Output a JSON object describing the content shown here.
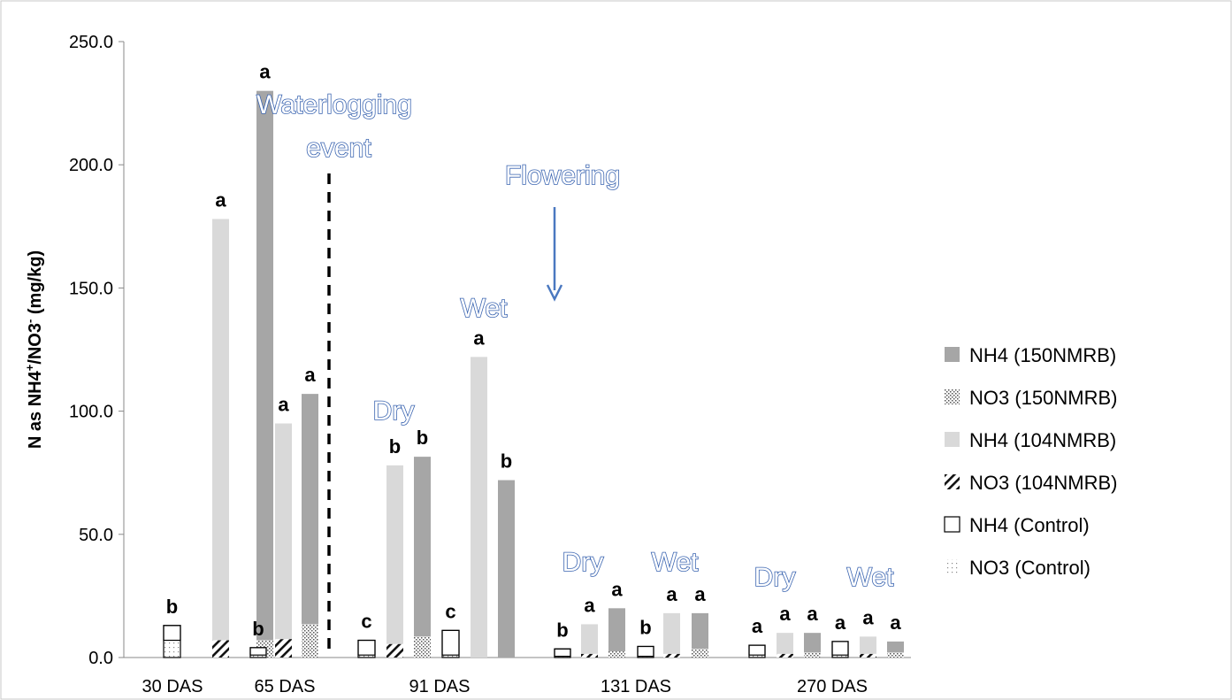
{
  "chart_data": {
    "type": "bar",
    "ylabel": "N as NH4",
    "ylabel_sup": "+",
    "ylabel_mid": "/NO3",
    "ylabel_sup2": "-",
    "ylabel_tail": " (mg/kg)",
    "ylim": [
      0,
      250
    ],
    "yticks": [
      "0.0",
      "50.0",
      "100.0",
      "150.0",
      "200.0",
      "250.0"
    ],
    "categories": [
      "30 DAS",
      "65 DAS",
      "91 DAS",
      "131 DAS",
      "270 DAS"
    ],
    "legend_position": "right",
    "legend": [
      {
        "name": "NH4 (150NMRB)",
        "style": "nh4_150"
      },
      {
        "name": "NO3 (150NMRB)",
        "style": "no3_150"
      },
      {
        "name": "NH4 (104NMRB)",
        "style": "nh4_104"
      },
      {
        "name": "NO3 (104NMRB)",
        "style": "no3_104"
      },
      {
        "name": "NH4 (Control)",
        "style": "nh4_ctrl"
      },
      {
        "name": "NO3 (Control)",
        "style": "no3_ctrl"
      }
    ],
    "colors": {
      "nh4_150": "#a6a6a6",
      "nh4_104": "#d9d9d9",
      "annotation": "#3a64b0"
    },
    "bars": [
      {
        "cat": 0,
        "treatment": "Control",
        "no3": 7,
        "nh4": 6,
        "letter": "b"
      },
      {
        "cat": 0,
        "treatment": "104NMRB",
        "no3": 7,
        "nh4": 171,
        "letter": "a"
      },
      {
        "cat": 0,
        "treatment": "150NMRB",
        "no3": 7,
        "nh4": 223,
        "letter": "a"
      },
      {
        "cat": 1,
        "treatment": "Control",
        "no3": 1,
        "nh4": 3,
        "letter": "b"
      },
      {
        "cat": 1,
        "treatment": "104NMRB",
        "no3": 7.5,
        "nh4": 87.5,
        "letter": "a"
      },
      {
        "cat": 1,
        "treatment": "150NMRB",
        "no3": 13.5,
        "nh4": 93.5,
        "letter": "a"
      },
      {
        "cat": 2,
        "treatment": "Control",
        "no3": 1,
        "nh4": 6,
        "letter": "c"
      },
      {
        "cat": 2,
        "treatment": "104NMRB",
        "no3": 5.5,
        "nh4": 72.5,
        "letter": "b"
      },
      {
        "cat": 2,
        "treatment": "150NMRB",
        "no3": 8.5,
        "nh4": 73,
        "letter": "b"
      },
      {
        "cat": 2,
        "treatment": "Control",
        "no3": 1,
        "nh4": 10,
        "letter": "c"
      },
      {
        "cat": 2,
        "treatment": "104NMRB",
        "no3": 0,
        "nh4": 122,
        "letter": "a"
      },
      {
        "cat": 2,
        "treatment": "150NMRB",
        "no3": 0,
        "nh4": 72,
        "letter": "b"
      },
      {
        "cat": 3,
        "treatment": "Control",
        "no3": 0.5,
        "nh4": 3,
        "letter": "b"
      },
      {
        "cat": 3,
        "treatment": "104NMRB",
        "no3": 1.5,
        "nh4": 12,
        "letter": "a"
      },
      {
        "cat": 3,
        "treatment": "150NMRB",
        "no3": 2.5,
        "nh4": 17.5,
        "letter": "a"
      },
      {
        "cat": 3,
        "treatment": "Control",
        "no3": 0.5,
        "nh4": 4,
        "letter": "b"
      },
      {
        "cat": 3,
        "treatment": "104NMRB",
        "no3": 1.5,
        "nh4": 16.5,
        "letter": "a"
      },
      {
        "cat": 3,
        "treatment": "150NMRB",
        "no3": 3.5,
        "nh4": 14.5,
        "letter": "a"
      },
      {
        "cat": 4,
        "treatment": "Control",
        "no3": 1,
        "nh4": 4,
        "letter": "a"
      },
      {
        "cat": 4,
        "treatment": "104NMRB",
        "no3": 1.5,
        "nh4": 8.5,
        "letter": "a"
      },
      {
        "cat": 4,
        "treatment": "150NMRB",
        "no3": 2,
        "nh4": 8,
        "letter": "a"
      },
      {
        "cat": 4,
        "treatment": "Control",
        "no3": 1,
        "nh4": 5.5,
        "letter": "a"
      },
      {
        "cat": 4,
        "treatment": "104NMRB",
        "no3": 1.5,
        "nh4": 7,
        "letter": "a"
      },
      {
        "cat": 4,
        "treatment": "150NMRB",
        "no3": 2,
        "nh4": 4.5,
        "letter": "a"
      }
    ],
    "annotations": {
      "waterlogging_line1": "Waterlogging",
      "waterlogging_line2": "event",
      "flowering": "Flowering",
      "wet_91": "Wet",
      "dry_91": "Dry",
      "dry_131": "Dry",
      "wet_131": "Wet",
      "dry_270": "Dry",
      "wet_270": "Wet"
    }
  }
}
